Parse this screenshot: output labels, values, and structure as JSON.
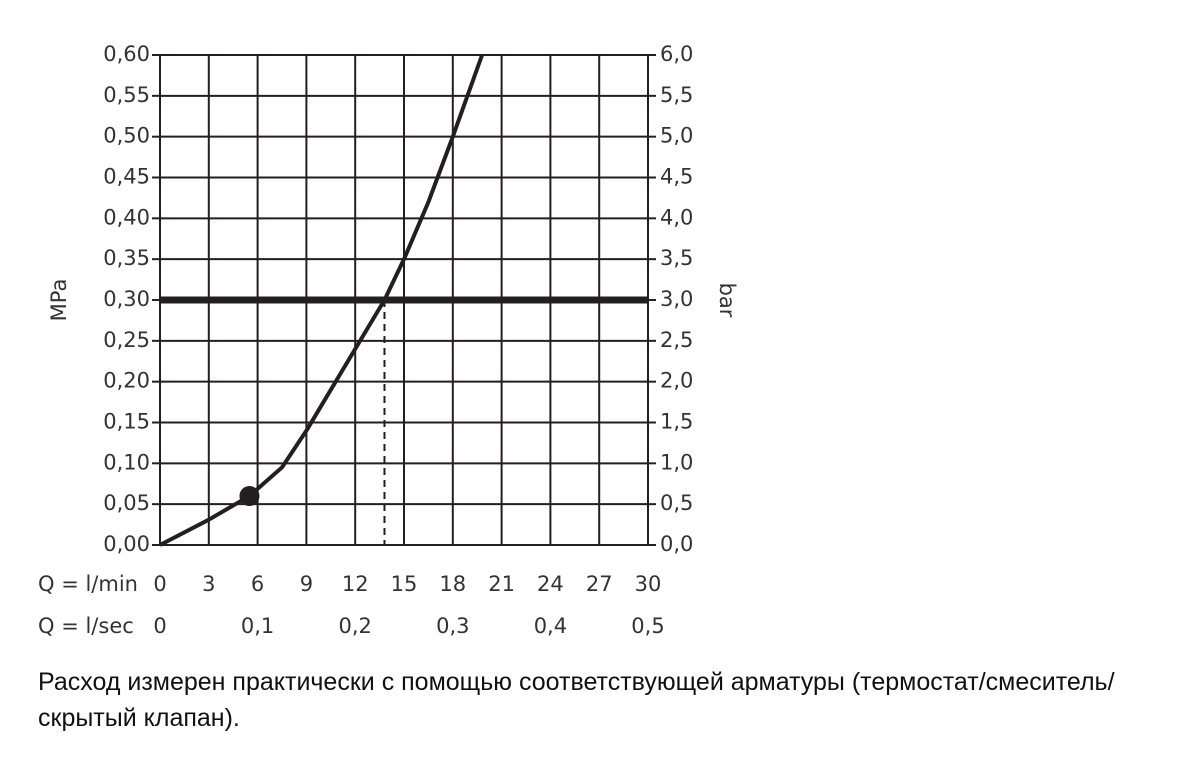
{
  "chart_data": {
    "type": "line",
    "x_label": "Q = l/min",
    "x2_label": "Q = l/sec",
    "y_label": "MPa",
    "y2_label": "bar",
    "note": "Расход измерен практически с помощью соответствующей арматуры (термостат/смеситель/скрытый клапан).",
    "xlim": [
      0,
      30
    ],
    "xticks": [
      0,
      3,
      6,
      9,
      12,
      15,
      18,
      21,
      24,
      27,
      30
    ],
    "x2lim": [
      0,
      0.5
    ],
    "x2ticks": [
      0,
      {
        "value": 0.1,
        "label": "0,1"
      },
      {
        "value": 0.2,
        "label": "0,2"
      },
      {
        "value": 0.3,
        "label": "0,3"
      },
      {
        "value": 0.4,
        "label": "0,4"
      },
      {
        "value": 0.5,
        "label": "0,5"
      }
    ],
    "ylim": [
      0,
      0.6
    ],
    "yticks": [
      {
        "value": 0,
        "label": "0,00"
      },
      {
        "value": 0.05,
        "label": "0,05"
      },
      {
        "value": 0.1,
        "label": "0,10"
      },
      {
        "value": 0.15,
        "label": "0,15"
      },
      {
        "value": 0.2,
        "label": "0,20"
      },
      {
        "value": 0.25,
        "label": "0,25"
      },
      {
        "value": 0.3,
        "label": "0,30"
      },
      {
        "value": 0.35,
        "label": "0,35"
      },
      {
        "value": 0.4,
        "label": "0,40"
      },
      {
        "value": 0.45,
        "label": "0,45"
      },
      {
        "value": 0.5,
        "label": "0,50"
      },
      {
        "value": 0.55,
        "label": "0,55"
      },
      {
        "value": 0.6,
        "label": "0,60"
      }
    ],
    "y2lim": [
      0,
      6
    ],
    "y2ticks": [
      {
        "value": 0,
        "label": "0,0"
      },
      {
        "value": 0.5,
        "label": "0,5"
      },
      {
        "value": 1,
        "label": "1,0"
      },
      {
        "value": 1.5,
        "label": "1,5"
      },
      {
        "value": 2,
        "label": "2,0"
      },
      {
        "value": 2.5,
        "label": "2,5"
      },
      {
        "value": 3,
        "label": "3,0"
      },
      {
        "value": 3.5,
        "label": "3,5"
      },
      {
        "value": 4,
        "label": "4,0"
      },
      {
        "value": 4.5,
        "label": "4,5"
      },
      {
        "value": 5,
        "label": "5,0"
      },
      {
        "value": 5.5,
        "label": "5,5"
      },
      {
        "value": 6,
        "label": "6,0"
      }
    ],
    "grid": true,
    "series": [
      {
        "color": "#231f20",
        "x": [
          0,
          3,
          5.5,
          7.5,
          9,
          10.5,
          12,
          13.8,
          15,
          16.5,
          18,
          19.8
        ],
        "values": [
          0,
          0.031,
          0.06,
          0.095,
          0.14,
          0.19,
          0.24,
          0.3,
          0.35,
          0.42,
          0.5,
          0.6
        ]
      }
    ],
    "marker": {
      "x": 5.5,
      "y": 0.06
    },
    "hline": 0.3,
    "vline": 13.8
  }
}
